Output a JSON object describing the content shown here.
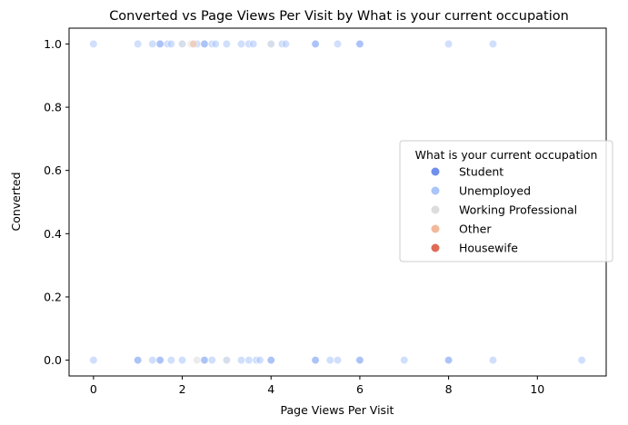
{
  "chart_data": {
    "type": "scatter",
    "title": "Converted vs Page Views Per Visit by What is your current occupation",
    "xlabel": "Page Views Per Visit",
    "ylabel": "Converted",
    "xlim": [
      -0.55,
      11.55
    ],
    "ylim": [
      -0.05,
      1.05
    ],
    "xticks": [
      "0",
      "2",
      "4",
      "6",
      "8",
      "10"
    ],
    "xtick_values": [
      0,
      2,
      4,
      6,
      8,
      10
    ],
    "yticks": [
      "0.0",
      "0.2",
      "0.4",
      "0.6",
      "0.8",
      "1.0"
    ],
    "ytick_values": [
      0,
      0.2,
      0.4,
      0.6,
      0.8,
      1.0
    ],
    "grid": false,
    "legend": {
      "title": "What is your current occupation",
      "placement": "center-right"
    },
    "series": [
      {
        "name": "Student",
        "color": "#6f8fec",
        "points": [
          [
            1.5,
            1
          ],
          [
            2.5,
            1
          ],
          [
            5,
            1
          ],
          [
            6,
            1
          ],
          [
            1,
            0
          ],
          [
            1.5,
            0
          ],
          [
            2.5,
            0
          ],
          [
            4,
            0
          ],
          [
            5,
            0
          ],
          [
            6,
            0
          ],
          [
            8,
            0
          ]
        ]
      },
      {
        "name": "Unemployed",
        "color": "#aac5f9",
        "points": [
          [
            0,
            1
          ],
          [
            1,
            1
          ],
          [
            1.33,
            1
          ],
          [
            1.5,
            1
          ],
          [
            1.67,
            1
          ],
          [
            1.75,
            1
          ],
          [
            2,
            1
          ],
          [
            2.33,
            1
          ],
          [
            2.5,
            1
          ],
          [
            2.67,
            1
          ],
          [
            2.75,
            1
          ],
          [
            3,
            1
          ],
          [
            3.33,
            1
          ],
          [
            3.5,
            1
          ],
          [
            3.6,
            1
          ],
          [
            4,
            1
          ],
          [
            4.25,
            1
          ],
          [
            4.33,
            1
          ],
          [
            5,
            1
          ],
          [
            5.5,
            1
          ],
          [
            6,
            1
          ],
          [
            8,
            1
          ],
          [
            9,
            1
          ],
          [
            0,
            0
          ],
          [
            1,
            0
          ],
          [
            1.33,
            0
          ],
          [
            1.5,
            0
          ],
          [
            1.75,
            0
          ],
          [
            2,
            0
          ],
          [
            2.5,
            0
          ],
          [
            2.67,
            0
          ],
          [
            3,
            0
          ],
          [
            3.33,
            0
          ],
          [
            3.5,
            0
          ],
          [
            3.67,
            0
          ],
          [
            3.75,
            0
          ],
          [
            4,
            0
          ],
          [
            5,
            0
          ],
          [
            5.33,
            0
          ],
          [
            5.5,
            0
          ],
          [
            6,
            0
          ],
          [
            7,
            0
          ],
          [
            8,
            0
          ],
          [
            9,
            0
          ],
          [
            11,
            0
          ]
        ]
      },
      {
        "name": "Working Professional",
        "color": "#dcdcdc",
        "points": [
          [
            2,
            1
          ],
          [
            2.2,
            1
          ],
          [
            4,
            1
          ],
          [
            2.33,
            0
          ],
          [
            3,
            0
          ]
        ]
      },
      {
        "name": "Other",
        "color": "#f2b89c",
        "points": [
          [
            2.25,
            1
          ]
        ]
      },
      {
        "name": "Housewife",
        "color": "#dd6b57",
        "points": []
      }
    ]
  }
}
